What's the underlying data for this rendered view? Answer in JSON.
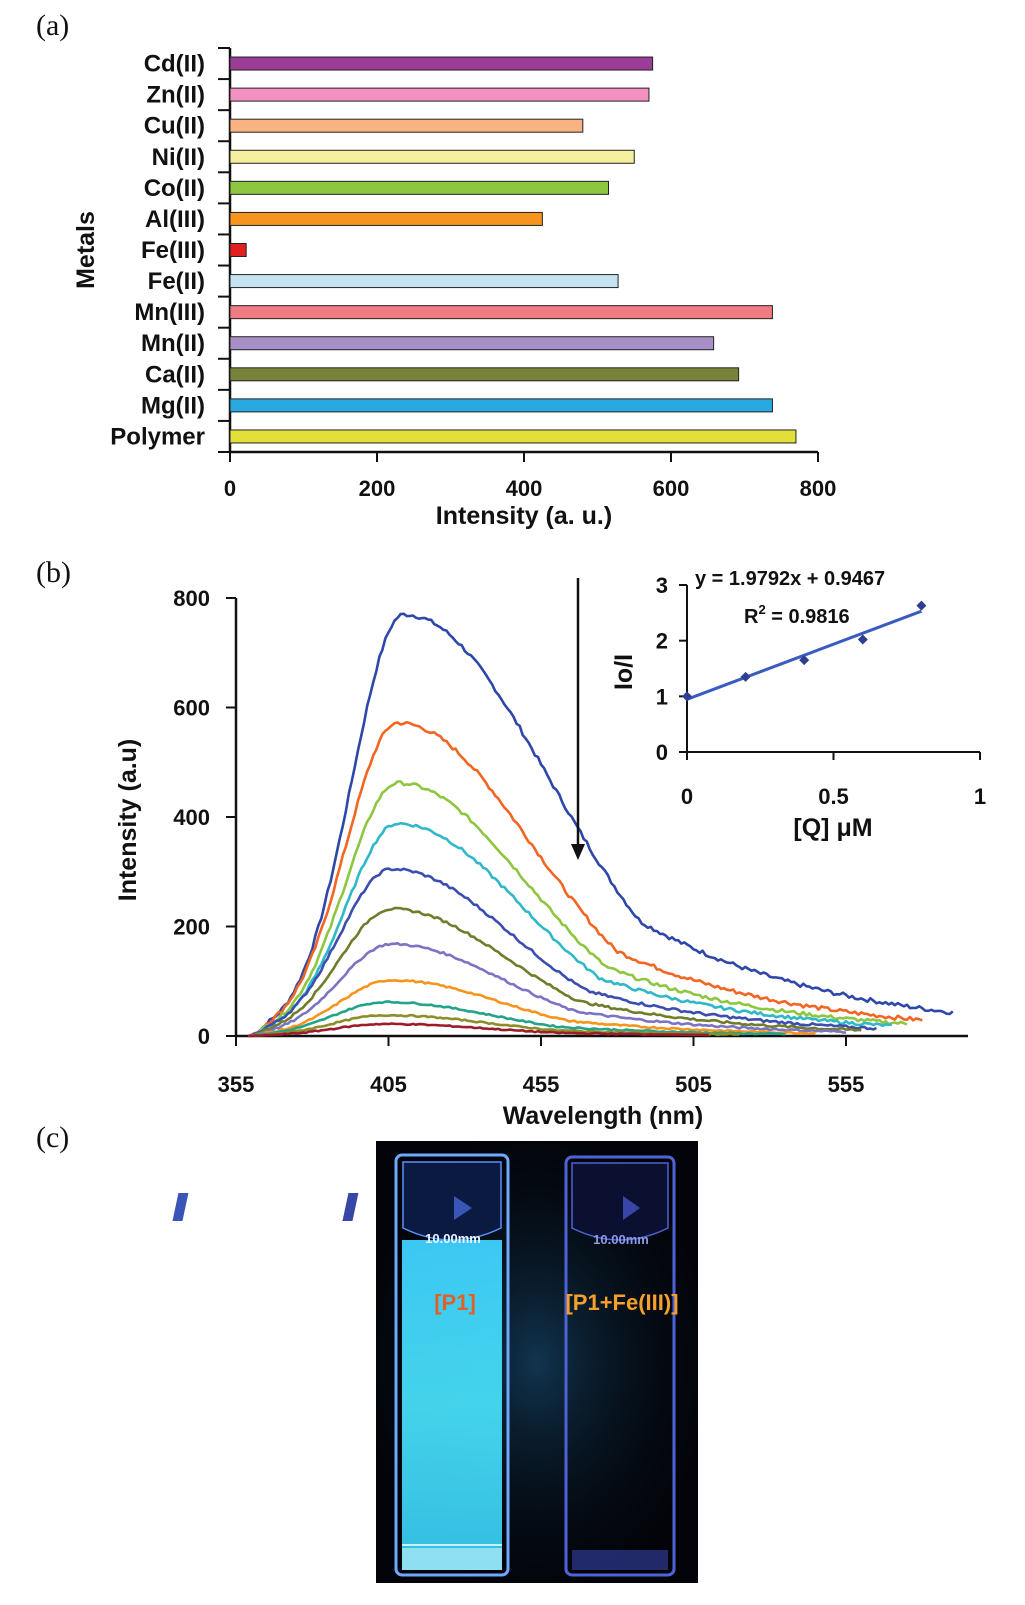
{
  "panels": {
    "a": "(a)",
    "b": "(b)",
    "c": "(c)"
  },
  "chart_data": [
    {
      "id": "a",
      "type": "bar",
      "orientation": "horizontal",
      "categories": [
        "Cd(II)",
        "Zn(II)",
        "Cu(II)",
        "Ni(II)",
        "Co(II)",
        "Al(III)",
        "Fe(III)",
        "Fe(II)",
        "Mn(III)",
        "Mn(II)",
        "Ca(II)",
        "Mg(II)",
        "Polymer"
      ],
      "values": [
        575,
        570,
        480,
        550,
        515,
        425,
        22,
        528,
        738,
        658,
        692,
        738,
        770
      ],
      "colors": [
        "#9b3d97",
        "#f291c0",
        "#f9b383",
        "#f4f09e",
        "#8dc63f",
        "#f7941d",
        "#e02020",
        "#c5e3f0",
        "#f07c82",
        "#a98fc7",
        "#79823a",
        "#29a9e0",
        "#e2e038"
      ],
      "xlabel": "Intensity (a. u.)",
      "ylabel": "Metals",
      "xlim": [
        0,
        800
      ],
      "xticks": [
        "0",
        "200",
        "400",
        "600",
        "800"
      ],
      "grid": false,
      "legend": "none"
    },
    {
      "id": "b",
      "type": "line",
      "xlabel": "Wavelength (nm)",
      "ylabel": "Intensity (a.u)",
      "xlim": [
        355,
        595
      ],
      "ylim": [
        0,
        800
      ],
      "xticks": [
        "355",
        "405",
        "455",
        "505",
        "555"
      ],
      "yticks": [
        "0",
        "200",
        "400",
        "600",
        "800"
      ],
      "grid": false,
      "legend": "none",
      "annotation": "downward arrow indicating decreasing intensity",
      "series": [
        {
          "color": "#2e47a8",
          "peak_x": 410,
          "peak_y": 770,
          "end_x": 590
        },
        {
          "color": "#f26522",
          "peak_x": 408,
          "peak_y": 572,
          "end_x": 580
        },
        {
          "color": "#8dc63f",
          "peak_x": 408,
          "peak_y": 462,
          "end_x": 575
        },
        {
          "color": "#2fb8c8",
          "peak_x": 408,
          "peak_y": 388,
          "end_x": 570
        },
        {
          "color": "#3c4db0",
          "peak_x": 406,
          "peak_y": 305,
          "end_x": 565
        },
        {
          "color": "#6f7d2a",
          "peak_x": 406,
          "peak_y": 232,
          "end_x": 560
        },
        {
          "color": "#7b74c4",
          "peak_x": 406,
          "peak_y": 168,
          "end_x": 555
        },
        {
          "color": "#f7941d",
          "peak_x": 406,
          "peak_y": 102,
          "end_x": 545
        },
        {
          "color": "#22a38a",
          "peak_x": 404,
          "peak_y": 62,
          "end_x": 535
        },
        {
          "color": "#8a8f2a",
          "peak_x": 404,
          "peak_y": 38,
          "end_x": 520
        },
        {
          "color": "#9c1c2a",
          "peak_x": 404,
          "peak_y": 22,
          "end_x": 510
        }
      ]
    },
    {
      "id": "b-inset",
      "type": "scatter",
      "equation": "y = 1.9792x + 0.9467",
      "r2_label": "R",
      "r2_sup": "2",
      "r2_value": " = 0.9816",
      "xlabel": "[Q] μM",
      "ylabel": "Io/I",
      "xlim": [
        0,
        1
      ],
      "ylim": [
        0,
        3
      ],
      "xticks": [
        "0",
        "0.5",
        "1"
      ],
      "yticks": [
        "0",
        "1",
        "2",
        "3"
      ],
      "points": [
        [
          0,
          1.0
        ],
        [
          0.2,
          1.35
        ],
        [
          0.4,
          1.65
        ],
        [
          0.6,
          2.02
        ],
        [
          0.8,
          2.63
        ]
      ],
      "fit": {
        "slope": 1.9792,
        "intercept": 0.9467,
        "x_range": [
          0,
          0.8
        ]
      },
      "point_color": "#2e3f8f",
      "line_color": "#3a5bbf"
    }
  ],
  "photo": {
    "left_label": "[P1]",
    "right_label": "[P1+Fe(III)]",
    "cuvette_mark": "10.00mm",
    "left_label_color": "#e0602a",
    "right_label_color": "#f5a02a"
  }
}
